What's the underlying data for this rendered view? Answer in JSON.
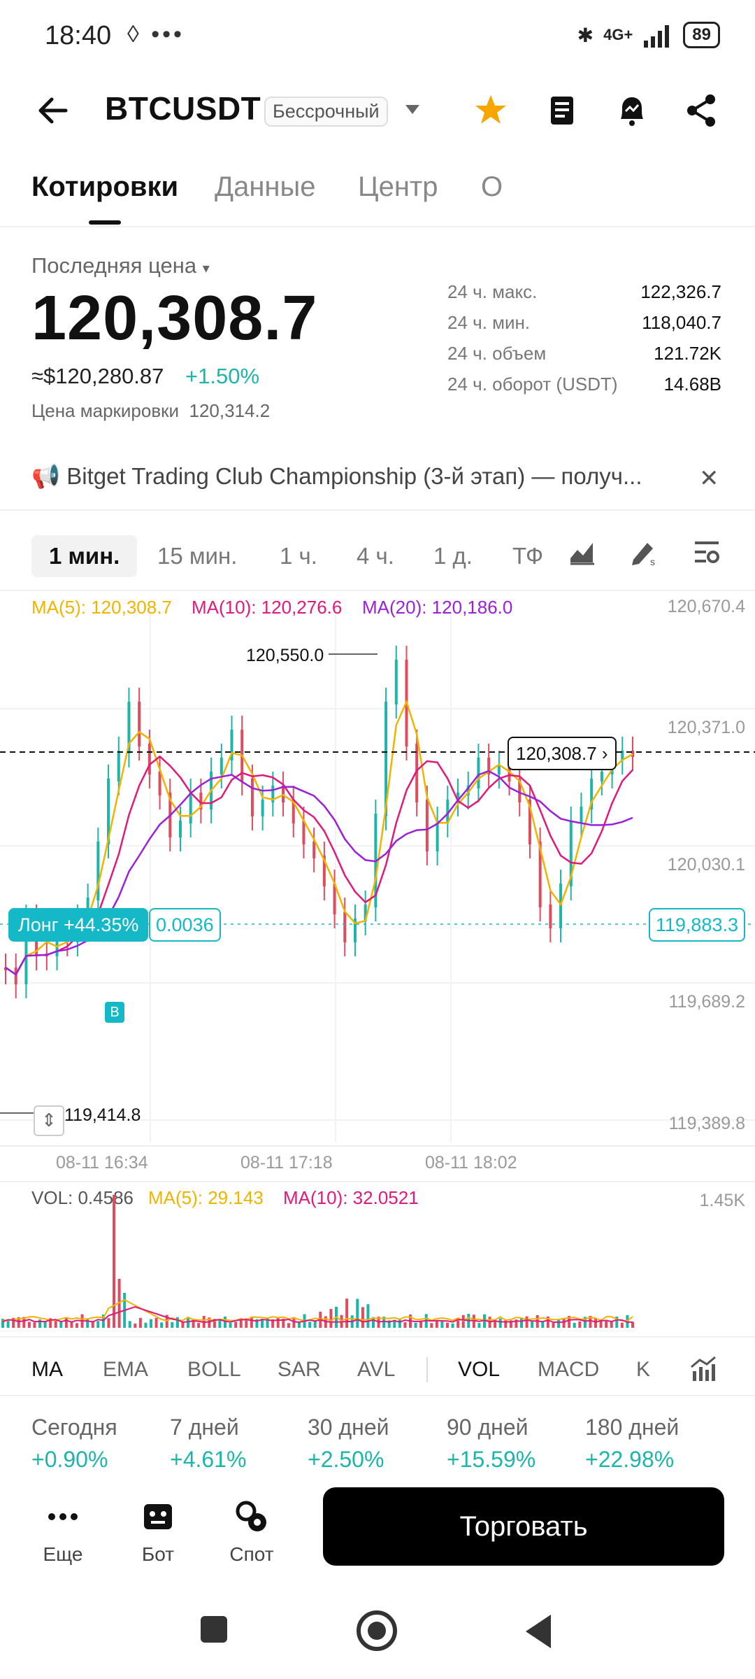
{
  "status_bar": {
    "time": "18:40",
    "misc": "◊ •••",
    "network": "4G+",
    "battery": "89"
  },
  "header": {
    "symbol": "BTCUSDT",
    "badge": "Бессрочный"
  },
  "tabs": [
    "Котировки",
    "Данные",
    "Центр",
    "О"
  ],
  "price": {
    "label": "Последняя цена",
    "value": "120,308.7",
    "usd": "≈$120,280.87",
    "change": "+1.50%",
    "mark_label": "Цена маркировки",
    "mark_value": "120,314.2"
  },
  "stats": [
    {
      "label": "24 ч. макс.",
      "value": "122,326.7"
    },
    {
      "label": "24 ч. мин.",
      "value": "118,040.7"
    },
    {
      "label": "24 ч. объем",
      "value": "121.72K"
    },
    {
      "label": "24 ч. оборот (USDT)",
      "value": "14.68B"
    }
  ],
  "announcement": "Bitget Trading Club Championship (3-й этап) — получ...",
  "timeframes": [
    "1 мин.",
    "15 мин.",
    "1 ч.",
    "4 ч.",
    "1 д.",
    "ТФ"
  ],
  "ma_legend": {
    "ma5": "MA(5): 120,308.7",
    "ma10": "MA(10): 120,276.6",
    "ma20": "MA(20): 120,186.0"
  },
  "price_axis": [
    "120,670.4",
    "120,371.0",
    "120,030.1",
    "119,689.2",
    "119,389.8"
  ],
  "time_axis": [
    "08-11 16:34",
    "08-11 17:18",
    "08-11 18:02"
  ],
  "chart_labels": {
    "high": "120,550.0",
    "low": "119,414.8",
    "current": "120,308.7",
    "position": "Лонг  +44.35%",
    "position_qty": "0.0036",
    "entry_price": "119,883.3",
    "buy_marker": "B"
  },
  "volume": {
    "vol": "VOL: 0.4586",
    "ma5": "MA(5): 29.143",
    "ma10": "MA(10): 32.0521",
    "axis_max": "1.45K"
  },
  "indicators": [
    "MA",
    "EMA",
    "BOLL",
    "SAR",
    "AVL",
    "VOL",
    "MACD",
    "K"
  ],
  "periods": [
    {
      "label": "Сегодня",
      "value": "+0.90%"
    },
    {
      "label": "7 дней",
      "value": "+4.61%"
    },
    {
      "label": "30 дней",
      "value": "+2.50%"
    },
    {
      "label": "90 дней",
      "value": "+15.59%"
    },
    {
      "label": "180 дней",
      "value": "+22.98%"
    }
  ],
  "bottom_bar": {
    "more": "Еще",
    "bot": "Бот",
    "spot": "Спот",
    "trade": "Торговать"
  },
  "colors": {
    "up": "#1db5a9",
    "down": "#e04c5f",
    "ma5": "#f0b400",
    "ma10": "#e0197d",
    "ma20": "#9b20d9",
    "accent": "#14b8c7"
  },
  "chart_data": {
    "type": "candlestick",
    "x": [
      "08-11 16:34",
      "08-11 17:18",
      "08-11 18:02"
    ],
    "ylim": [
      119389.8,
      120670.4
    ],
    "high": 120550.0,
    "low": 119414.8,
    "last": 120308.7,
    "series": [
      {
        "name": "MA(5)",
        "last": 120308.7
      },
      {
        "name": "MA(10)",
        "last": 120276.6
      },
      {
        "name": "MA(20)",
        "last": 120186.0
      }
    ]
  }
}
